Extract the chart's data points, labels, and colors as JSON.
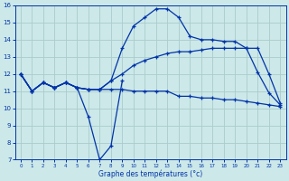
{
  "xlabel": "Graphe des températures (°c)",
  "background_color": "#cce8e8",
  "grid_color": "#aacccc",
  "line_color": "#0033aa",
  "xlim": [
    -0.5,
    23.5
  ],
  "ylim": [
    7,
    16
  ],
  "yticks": [
    7,
    8,
    9,
    10,
    11,
    12,
    13,
    14,
    15,
    16
  ],
  "xticks": [
    0,
    1,
    2,
    3,
    4,
    5,
    6,
    7,
    8,
    9,
    10,
    11,
    12,
    13,
    14,
    15,
    16,
    17,
    18,
    19,
    20,
    21,
    22,
    23
  ],
  "hours": [
    0,
    1,
    2,
    3,
    4,
    5,
    6,
    7,
    8,
    9,
    10,
    11,
    12,
    13,
    14,
    15,
    16,
    17,
    18,
    19,
    20,
    21,
    22,
    23
  ],
  "line_vshape": {
    "x": [
      0,
      1,
      2,
      3,
      4,
      5,
      6,
      7,
      8,
      9
    ],
    "y": [
      12.0,
      11.0,
      11.5,
      11.2,
      11.5,
      11.2,
      9.5,
      7.0,
      7.8,
      11.6
    ]
  },
  "line_bottom": {
    "x": [
      0,
      1,
      2,
      3,
      4,
      5,
      6,
      7,
      8,
      9,
      10,
      11,
      12,
      13,
      14,
      15,
      16,
      17,
      18,
      19,
      20,
      21,
      22,
      23
    ],
    "y": [
      12.0,
      11.0,
      11.5,
      11.2,
      11.5,
      11.2,
      11.1,
      11.1,
      11.1,
      11.1,
      11.0,
      11.0,
      11.0,
      11.0,
      10.7,
      10.7,
      10.6,
      10.6,
      10.5,
      10.5,
      10.4,
      10.3,
      10.2,
      10.1
    ]
  },
  "line_mid": {
    "x": [
      0,
      1,
      2,
      3,
      4,
      5,
      6,
      7,
      8,
      9,
      10,
      11,
      12,
      13,
      14,
      15,
      16,
      17,
      18,
      19,
      20,
      21,
      22,
      23
    ],
    "y": [
      12.0,
      11.0,
      11.5,
      11.2,
      11.5,
      11.2,
      11.1,
      11.1,
      11.6,
      12.0,
      12.5,
      12.8,
      13.0,
      13.2,
      13.3,
      13.3,
      13.4,
      13.5,
      13.5,
      13.5,
      13.5,
      13.5,
      12.0,
      10.3
    ]
  },
  "line_top": {
    "x": [
      0,
      1,
      2,
      3,
      4,
      5,
      6,
      7,
      8,
      9,
      10,
      11,
      12,
      13,
      14,
      15,
      16,
      17,
      18,
      19,
      20,
      21,
      22,
      23
    ],
    "y": [
      12.0,
      11.0,
      11.5,
      11.2,
      11.5,
      11.2,
      11.1,
      11.1,
      11.6,
      13.5,
      14.8,
      15.3,
      15.8,
      15.8,
      15.3,
      14.2,
      14.0,
      14.0,
      13.9,
      13.9,
      13.5,
      12.1,
      10.9,
      10.2
    ]
  }
}
